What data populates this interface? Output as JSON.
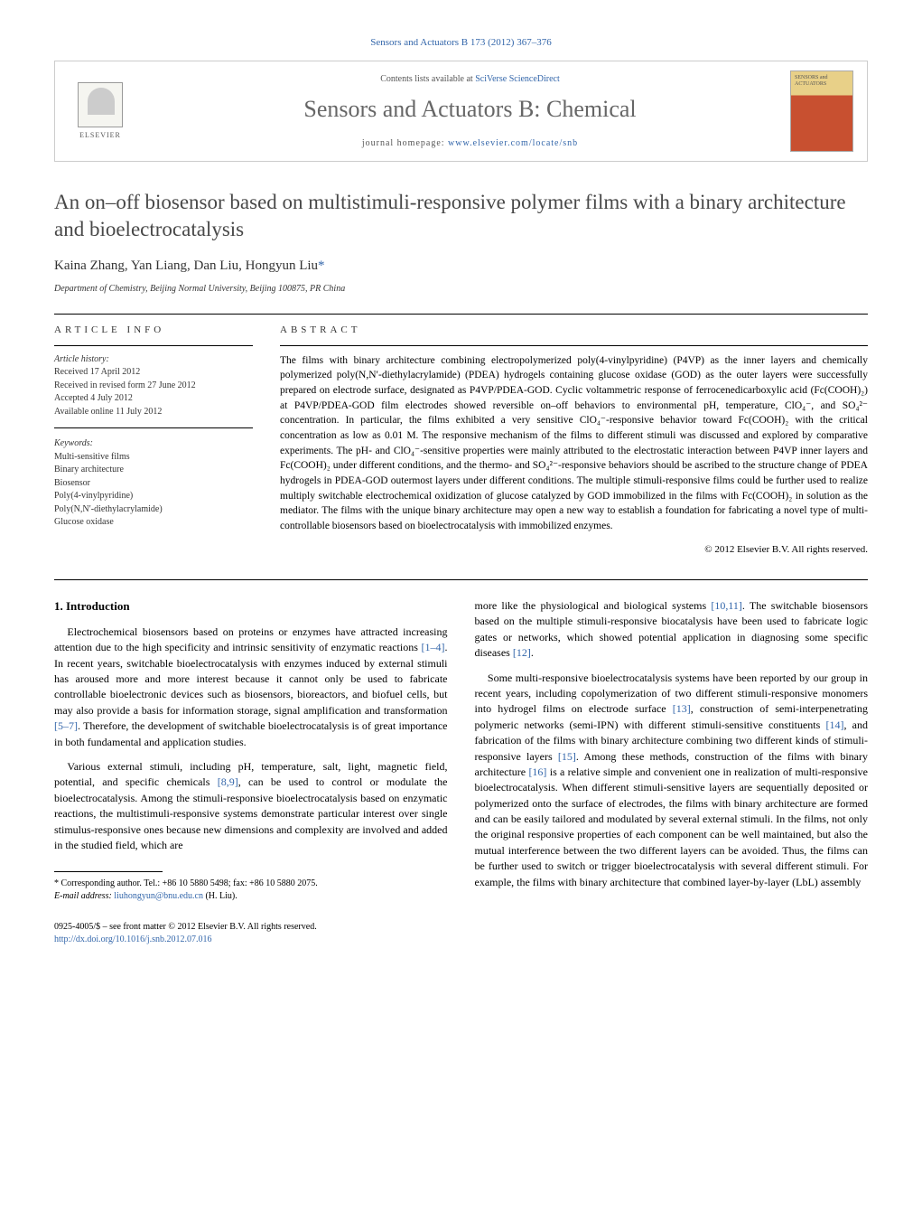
{
  "citation": "Sensors and Actuators B 173 (2012) 367–376",
  "banner": {
    "contents_prefix": "Contents lists available at ",
    "contents_link": "SciVerse ScienceDirect",
    "journal_name": "Sensors and Actuators B: Chemical",
    "homepage_prefix": "journal homepage: ",
    "homepage_link": "www.elsevier.com/locate/snb",
    "publisher_name": "ELSEVIER",
    "cover_label": "SENSORS and ACTUATORS"
  },
  "title": "An on–off biosensor based on multistimuli-responsive polymer films with a binary architecture and bioelectrocatalysis",
  "authors_html": "Kaina Zhang, Yan Liang, Dan Liu, Hongyun Liu",
  "corr_marker": "*",
  "affiliation": "Department of Chemistry, Beijing Normal University, Beijing 100875, PR China",
  "article_info": {
    "heading": "article info",
    "history_label": "Article history:",
    "history": [
      "Received 17 April 2012",
      "Received in revised form 27 June 2012",
      "Accepted 4 July 2012",
      "Available online 11 July 2012"
    ],
    "keywords_label": "Keywords:",
    "keywords": [
      "Multi-sensitive films",
      "Binary architecture",
      "Biosensor",
      "Poly(4-vinylpyridine)",
      "Poly(N,N′-diethylacrylamide)",
      "Glucose oxidase"
    ]
  },
  "abstract": {
    "heading": "abstract",
    "text": "The films with binary architecture combining electropolymerized poly(4-vinylpyridine) (P4VP) as the inner layers and chemically polymerized poly(N,N′-diethylacrylamide) (PDEA) hydrogels containing glucose oxidase (GOD) as the outer layers were successfully prepared on electrode surface, designated as P4VP/PDEA-GOD. Cyclic voltammetric response of ferrocenedicarboxylic acid (Fc(COOH)₂) at P4VP/PDEA-GOD film electrodes showed reversible on–off behaviors to environmental pH, temperature, ClO₄⁻, and SO₄²⁻ concentration. In particular, the films exhibited a very sensitive ClO₄⁻-responsive behavior toward Fc(COOH)₂ with the critical concentration as low as 0.01 M. The responsive mechanism of the films to different stimuli was discussed and explored by comparative experiments. The pH- and ClO₄⁻-sensitive properties were mainly attributed to the electrostatic interaction between P4VP inner layers and Fc(COOH)₂ under different conditions, and the thermo- and SO₄²⁻-responsive behaviors should be ascribed to the structure change of PDEA hydrogels in PDEA-GOD outermost layers under different conditions. The multiple stimuli-responsive films could be further used to realize multiply switchable electrochemical oxidization of glucose catalyzed by GOD immobilized in the films with Fc(COOH)₂ in solution as the mediator. The films with the unique binary architecture may open a new way to establish a foundation for fabricating a novel type of multi-controllable biosensors based on bioelectrocatalysis with immobilized enzymes.",
    "copyright": "© 2012 Elsevier B.V. All rights reserved."
  },
  "body": {
    "section_heading": "1. Introduction",
    "col1": [
      "Electrochemical biosensors based on proteins or enzymes have attracted increasing attention due to the high specificity and intrinsic sensitivity of enzymatic reactions [1–4]. In recent years, switchable bioelectrocatalysis with enzymes induced by external stimuli has aroused more and more interest because it cannot only be used to fabricate controllable bioelectronic devices such as biosensors, bioreactors, and biofuel cells, but may also provide a basis for information storage, signal amplification and transformation [5–7]. Therefore, the development of switchable bioelectrocatalysis is of great importance in both fundamental and application studies.",
      "Various external stimuli, including pH, temperature, salt, light, magnetic field, potential, and specific chemicals [8,9], can be used to control or modulate the bioelectrocatalysis. Among the stimuli-responsive bioelectrocatalysis based on enzymatic reactions, the multistimuli-responsive systems demonstrate particular interest over single stimulus-responsive ones because new dimensions and complexity are involved and added in the studied field, which are"
    ],
    "col2": [
      "more like the physiological and biological systems [10,11]. The switchable biosensors based on the multiple stimuli-responsive biocatalysis have been used to fabricate logic gates or networks, which showed potential application in diagnosing some specific diseases [12].",
      "Some multi-responsive bioelectrocatalysis systems have been reported by our group in recent years, including copolymerization of two different stimuli-responsive monomers into hydrogel films on electrode surface [13], construction of semi-interpenetrating polymeric networks (semi-IPN) with different stimuli-sensitive constituents [14], and fabrication of the films with binary architecture combining two different kinds of stimuli-responsive layers [15]. Among these methods, construction of the films with binary architecture [16] is a relative simple and convenient one in realization of multi-responsive bioelectrocatalysis. When different stimuli-sensitive layers are sequentially deposited or polymerized onto the surface of electrodes, the films with binary architecture are formed and can be easily tailored and modulated by several external stimuli. In the films, not only the original responsive properties of each component can be well maintained, but also the mutual interference between the two different layers can be avoided. Thus, the films can be further used to switch or trigger bioelectrocatalysis with several different stimuli. For example, the films with binary architecture that combined layer-by-layer (LbL) assembly"
    ]
  },
  "footnote": {
    "corr_label": "* Corresponding author. Tel.: +86 10 5880 5498; fax: +86 10 5880 2075.",
    "email_label": "E-mail address: ",
    "email": "liuhongyun@bnu.edu.cn",
    "email_suffix": " (H. Liu)."
  },
  "bottom": {
    "issn_line": "0925-4005/$ – see front matter © 2012 Elsevier B.V. All rights reserved.",
    "doi": "http://dx.doi.org/10.1016/j.snb.2012.07.016"
  },
  "refs": {
    "r1_4": "[1–4]",
    "r5_7": "[5–7]",
    "r8_9": "[8,9]",
    "r10_11": "[10,11]",
    "r12": "[12]",
    "r13": "[13]",
    "r14": "[14]",
    "r15": "[15]",
    "r16": "[16]"
  }
}
